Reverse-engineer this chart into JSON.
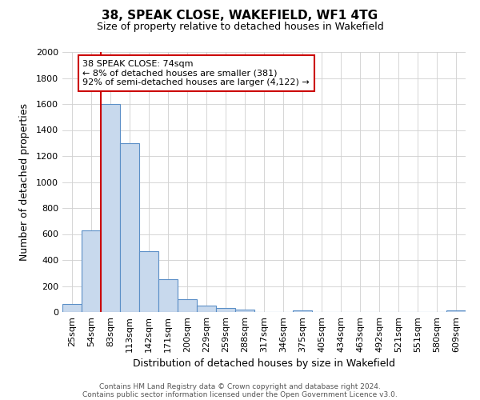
{
  "title": "38, SPEAK CLOSE, WAKEFIELD, WF1 4TG",
  "subtitle": "Size of property relative to detached houses in Wakefield",
  "xlabel": "Distribution of detached houses by size in Wakefield",
  "ylabel": "Number of detached properties",
  "bar_color": "#c8d9ed",
  "bar_edge_color": "#5b8fc7",
  "background_color": "#ffffff",
  "grid_color": "#d0d0d0",
  "annotation_line_color": "#cc0000",
  "annotation_box_color": "#cc0000",
  "categories": [
    "25sqm",
    "54sqm",
    "83sqm",
    "113sqm",
    "142sqm",
    "171sqm",
    "200sqm",
    "229sqm",
    "259sqm",
    "288sqm",
    "317sqm",
    "346sqm",
    "375sqm",
    "405sqm",
    "434sqm",
    "463sqm",
    "492sqm",
    "521sqm",
    "551sqm",
    "580sqm",
    "609sqm"
  ],
  "bar_heights": [
    60,
    630,
    1600,
    1300,
    470,
    250,
    100,
    50,
    30,
    20,
    0,
    0,
    15,
    0,
    0,
    0,
    0,
    0,
    0,
    0,
    15
  ],
  "ylim": [
    0,
    2000
  ],
  "yticks": [
    0,
    200,
    400,
    600,
    800,
    1000,
    1200,
    1400,
    1600,
    1800,
    2000
  ],
  "red_line_x": 1.5,
  "annotation_title": "38 SPEAK CLOSE: 74sqm",
  "annotation_line1": "← 8% of detached houses are smaller (381)",
  "annotation_line2": "92% of semi-detached houses are larger (4,122) →",
  "footer1": "Contains HM Land Registry data © Crown copyright and database right 2024.",
  "footer2": "Contains public sector information licensed under the Open Government Licence v3.0.",
  "title_fontsize": 11,
  "subtitle_fontsize": 9,
  "axis_label_fontsize": 9,
  "tick_fontsize": 8,
  "annotation_fontsize": 8,
  "footer_fontsize": 6.5
}
